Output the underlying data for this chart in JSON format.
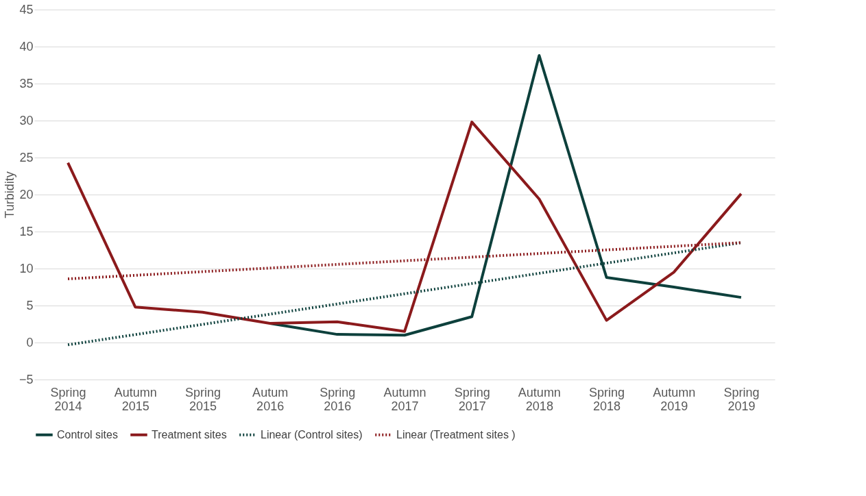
{
  "chart_data": {
    "type": "line",
    "ylabel": "Turbidity",
    "categories": [
      "Spring 2014",
      "Autumn 2015",
      "Spring 2015",
      "Autum 2016",
      "Spring 2016",
      "Autumn 2017",
      "Spring 2017",
      "Autumn 2018",
      "Spring 2018",
      "Autumn 2019",
      "Spring 2019"
    ],
    "series": [
      {
        "name": "Control sites",
        "color": "#0d403c",
        "line_style": "solid",
        "values": [
          null,
          null,
          null,
          2.6,
          1.1,
          1.0,
          3.5,
          38.8,
          8.8,
          7.5,
          6.1
        ]
      },
      {
        "name": "Treatment sites",
        "color": "#8b1a1c",
        "line_style": "solid",
        "values": [
          24.3,
          4.8,
          4.1,
          2.6,
          2.8,
          1.5,
          29.8,
          19.4,
          3.0,
          9.5,
          20.1
        ]
      },
      {
        "name": "Linear (Control sites)",
        "color": "#0d403c",
        "line_style": "dotted",
        "values": [
          -0.3,
          null,
          null,
          null,
          null,
          null,
          null,
          null,
          null,
          null,
          13.5
        ]
      },
      {
        "name": "Linear (Treatment sites )",
        "color": "#8b1a1c",
        "line_style": "dotted",
        "values": [
          8.6,
          null,
          null,
          null,
          null,
          null,
          null,
          null,
          null,
          null,
          13.5
        ]
      }
    ],
    "ylim": [
      -5,
      45
    ],
    "yticks": [
      -5,
      0,
      5,
      10,
      15,
      20,
      25,
      30,
      35,
      40,
      45
    ],
    "grid": "y",
    "legend": "bottom",
    "marker": "none"
  }
}
